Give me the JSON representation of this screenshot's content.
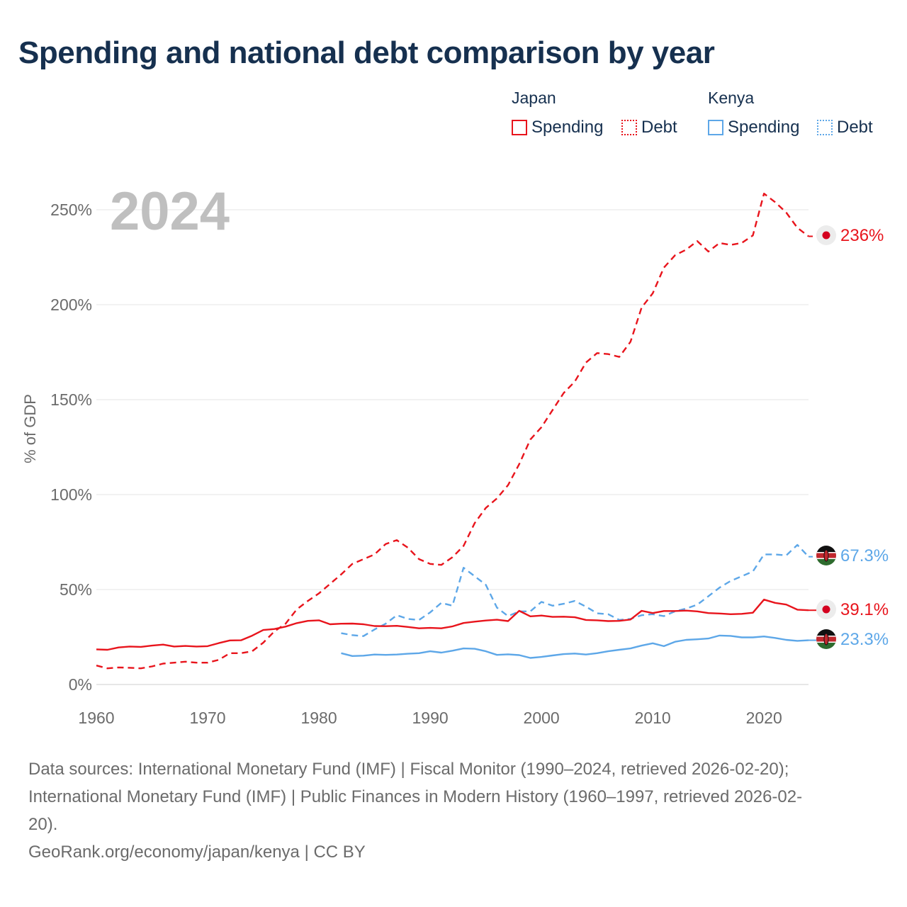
{
  "title": "Spending and national debt comparison by year",
  "legend": {
    "groups": [
      {
        "name": "Japan",
        "color": "#e8141c",
        "items": [
          {
            "label": "Spending",
            "style": "solid"
          },
          {
            "label": "Debt",
            "style": "dotted"
          }
        ]
      },
      {
        "name": "Kenya",
        "color": "#5da7e8",
        "items": [
          {
            "label": "Spending",
            "style": "solid"
          },
          {
            "label": "Debt",
            "style": "dotted"
          }
        ]
      }
    ]
  },
  "year_label": "2024",
  "end_labels": {
    "japan_debt": "236%",
    "kenya_debt": "67.3%",
    "japan_spending": "39.1%",
    "kenya_spending": "23.3%"
  },
  "footer": {
    "line1": "Data sources: International Monetary Fund (IMF) | Fiscal Monitor (1990–2024, retrieved 2026-02-20);",
    "line2": "International Monetary Fund (IMF) | Public Finances in Modern History (1960–1997, retrieved 2026-02-",
    "line3": "20).",
    "line4": "GeoRank.org/economy/japan/kenya | CC BY"
  },
  "chart_data": {
    "type": "line",
    "ylabel": "% of GDP",
    "ylim": [
      0,
      250
    ],
    "xlim": [
      1960,
      2024
    ],
    "y_ticks": [
      0,
      50,
      100,
      150,
      200,
      250
    ],
    "y_tick_labels": [
      "0%",
      "50%",
      "100%",
      "150%",
      "200%",
      "250%"
    ],
    "x_ticks": [
      1960,
      1970,
      1980,
      1990,
      2000,
      2010,
      2020
    ],
    "x_tick_labels": [
      "1960",
      "1970",
      "1980",
      "1990",
      "2000",
      "2010",
      "2020"
    ],
    "grid": true,
    "series": [
      {
        "name": "Japan Debt",
        "country": "Japan",
        "metric": "Debt",
        "color": "#e8141c",
        "dash": "dashed",
        "x": [
          1960,
          1961,
          1962,
          1963,
          1964,
          1965,
          1966,
          1967,
          1968,
          1969,
          1970,
          1971,
          1972,
          1973,
          1974,
          1975,
          1976,
          1977,
          1978,
          1979,
          1980,
          1981,
          1982,
          1983,
          1984,
          1985,
          1986,
          1987,
          1988,
          1989,
          1990,
          1991,
          1992,
          1993,
          1994,
          1995,
          1996,
          1997,
          1998,
          1999,
          2000,
          2001,
          2002,
          2003,
          2004,
          2005,
          2006,
          2007,
          2008,
          2009,
          2010,
          2011,
          2012,
          2013,
          2014,
          2015,
          2016,
          2017,
          2018,
          2019,
          2020,
          2021,
          2022,
          2023,
          2024
        ],
        "values": [
          10,
          8.5,
          9,
          8.8,
          8.5,
          9.5,
          11,
          11.5,
          12,
          11.5,
          11.5,
          13,
          16.5,
          16.5,
          17.5,
          22,
          28,
          32,
          39.5,
          44,
          48,
          53,
          58,
          63.5,
          66,
          68.5,
          74,
          76,
          72,
          66,
          63.5,
          63,
          67,
          73,
          85,
          93,
          98,
          105,
          116,
          129,
          135.5,
          144.5,
          153.5,
          159.5,
          169.5,
          174.5,
          174,
          172.5,
          180.5,
          198.5,
          206,
          219.5,
          226,
          229,
          233.5,
          228,
          232.5,
          231.5,
          232.5,
          236.5,
          258.5,
          254,
          248.5,
          240.5,
          236
        ]
      },
      {
        "name": "Kenya Debt",
        "country": "Kenya",
        "metric": "Debt",
        "color": "#5da7e8",
        "dash": "dashed",
        "x": [
          1982,
          1983,
          1984,
          1985,
          1986,
          1987,
          1988,
          1989,
          1990,
          1991,
          1992,
          1993,
          1994,
          1995,
          1996,
          1997,
          1998,
          1999,
          2000,
          2001,
          2002,
          2003,
          2004,
          2005,
          2006,
          2007,
          2008,
          2009,
          2010,
          2011,
          2012,
          2013,
          2014,
          2015,
          2016,
          2017,
          2018,
          2019,
          2020,
          2021,
          2022,
          2023,
          2024
        ],
        "values": [
          27,
          26,
          25.5,
          29,
          32,
          36.5,
          34.5,
          34,
          38,
          43,
          41.5,
          61.5,
          57,
          52.5,
          40.5,
          36,
          38.5,
          38.5,
          43.5,
          41.5,
          42.5,
          44,
          41,
          37.5,
          37,
          34,
          34.5,
          36.5,
          37,
          36,
          38.5,
          40,
          42,
          46.5,
          51,
          54.5,
          57,
          59.5,
          68.5,
          68.5,
          68,
          73.5,
          67.3
        ]
      },
      {
        "name": "Japan Spending",
        "country": "Japan",
        "metric": "Spending",
        "color": "#e8141c",
        "dash": "solid",
        "x": [
          1960,
          1961,
          1962,
          1963,
          1964,
          1965,
          1966,
          1967,
          1968,
          1969,
          1970,
          1971,
          1972,
          1973,
          1974,
          1975,
          1976,
          1977,
          1978,
          1979,
          1980,
          1981,
          1982,
          1983,
          1984,
          1985,
          1986,
          1987,
          1988,
          1989,
          1990,
          1991,
          1992,
          1993,
          1994,
          1995,
          1996,
          1997,
          1998,
          1999,
          2000,
          2001,
          2002,
          2003,
          2004,
          2005,
          2006,
          2007,
          2008,
          2009,
          2010,
          2011,
          2012,
          2013,
          2014,
          2015,
          2016,
          2017,
          2018,
          2019,
          2020,
          2021,
          2022,
          2023,
          2024
        ],
        "values": [
          18.5,
          18.3,
          19.5,
          20,
          19.8,
          20.5,
          21,
          20,
          20.3,
          20,
          20.2,
          21.8,
          23.2,
          23.3,
          25.7,
          28.7,
          29.2,
          30.5,
          32.3,
          33.5,
          33.8,
          31.7,
          32,
          32.1,
          31.7,
          30.8,
          30.7,
          30.9,
          30.3,
          29.6,
          29.8,
          29.6,
          30.6,
          32.4,
          33.1,
          33.7,
          34.1,
          33.4,
          38.8,
          35.9,
          36.3,
          35.6,
          35.7,
          35.4,
          34,
          33.8,
          33.4,
          33.5,
          34.2,
          38.8,
          37.6,
          38.7,
          38.7,
          38.9,
          38.5,
          37.6,
          37.4,
          37,
          37.2,
          37.8,
          44.7,
          43,
          42.1,
          39.4,
          39.1
        ]
      },
      {
        "name": "Kenya Spending",
        "country": "Kenya",
        "metric": "Spending",
        "color": "#5da7e8",
        "dash": "solid",
        "x": [
          1982,
          1983,
          1984,
          1985,
          1986,
          1987,
          1988,
          1989,
          1990,
          1991,
          1992,
          1993,
          1994,
          1995,
          1996,
          1997,
          1998,
          1999,
          2000,
          2001,
          2002,
          2003,
          2004,
          2005,
          2006,
          2007,
          2008,
          2009,
          2010,
          2011,
          2012,
          2013,
          2014,
          2015,
          2016,
          2017,
          2018,
          2019,
          2020,
          2021,
          2022,
          2023,
          2024
        ],
        "values": [
          16.5,
          15,
          15.2,
          15.8,
          15.6,
          15.8,
          16.2,
          16.5,
          17.5,
          16.8,
          17.8,
          19,
          18.8,
          17.5,
          15.6,
          15.9,
          15.5,
          14,
          14.5,
          15.3,
          16,
          16.3,
          15.8,
          16.5,
          17.5,
          18.3,
          19,
          20.5,
          21.7,
          20.2,
          22.5,
          23.5,
          23.8,
          24.2,
          25.8,
          25.6,
          24.8,
          24.8,
          25.3,
          24.5,
          23.5,
          23,
          23.3
        ]
      }
    ]
  }
}
